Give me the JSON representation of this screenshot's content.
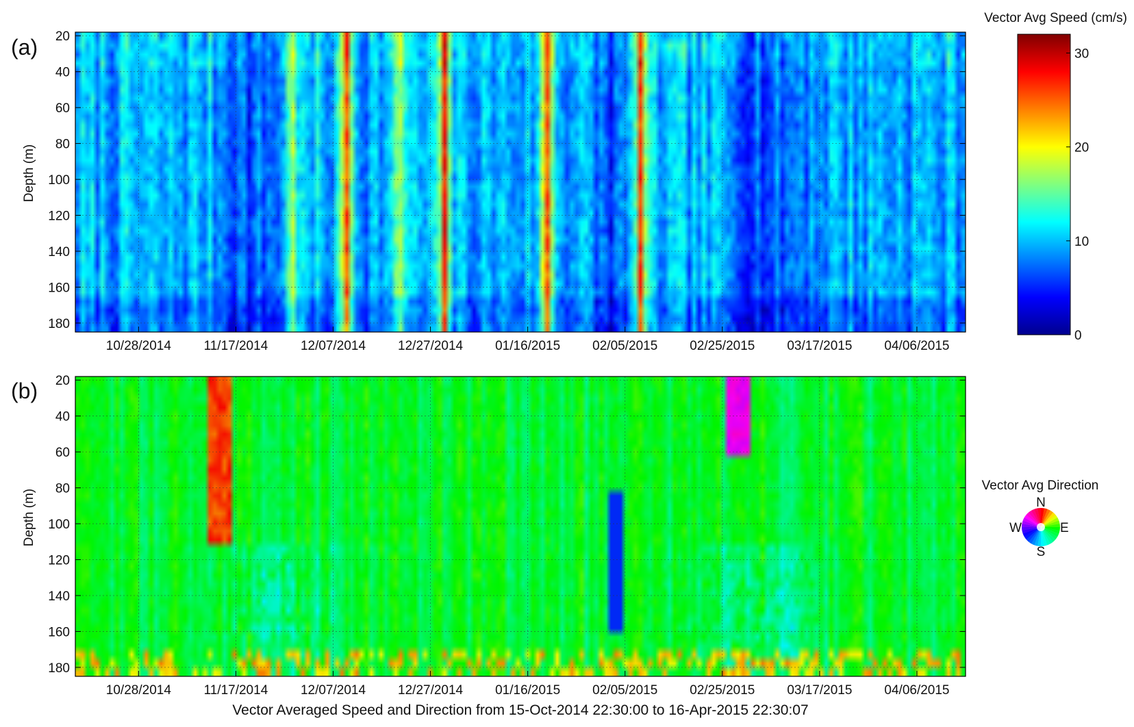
{
  "figure": {
    "footer": "Vector Averaged Speed and Direction from 15-Oct-2014 22:30:00 to 16-Apr-2015 22:30:07"
  },
  "chart_data": [
    {
      "type": "heatmap",
      "panel_label": "(a)",
      "title": "",
      "xlabel": "",
      "ylabel": "Depth (m)",
      "x_tick_labels": [
        "10/28/2014",
        "11/17/2014",
        "12/07/2014",
        "12/27/2014",
        "01/16/2015",
        "02/05/2015",
        "02/25/2015",
        "03/17/2015",
        "04/06/2015"
      ],
      "xlim": [
        "2014-10-15",
        "2015-04-16"
      ],
      "y_ticks": [
        20,
        40,
        60,
        80,
        100,
        120,
        140,
        160,
        180
      ],
      "ylim": [
        18,
        185
      ],
      "y_reversed": true,
      "grid": true,
      "colorbar": {
        "title": "Vector Avg Speed (cm/s)",
        "ticks": [
          0,
          10,
          20,
          30
        ],
        "range": [
          0,
          32
        ],
        "colormap": "jet"
      },
      "value_summary": "speed mostly 4–12 cm/s; strong full-depth events ~27 cm/s near 12/09/2014, 12/29/2014, 01/19/2015, 02/07/2015"
    },
    {
      "type": "heatmap",
      "panel_label": "(b)",
      "title": "",
      "xlabel": "",
      "ylabel": "Depth (m)",
      "x_tick_labels": [
        "10/28/2014",
        "11/17/2014",
        "12/07/2014",
        "12/27/2014",
        "01/16/2015",
        "02/05/2015",
        "02/25/2015",
        "03/17/2015",
        "04/06/2015"
      ],
      "xlim": [
        "2014-10-15",
        "2015-04-16"
      ],
      "y_ticks": [
        20,
        40,
        60,
        80,
        100,
        120,
        140,
        160,
        180
      ],
      "ylim": [
        18,
        185
      ],
      "y_reversed": true,
      "grid": true,
      "direction_key": {
        "title": "Vector Avg Direction",
        "labels": {
          "n": "N",
          "e": "E",
          "s": "S",
          "w": "W"
        },
        "colors": {
          "n": "#ff0000",
          "e": "#00dd00",
          "s": "#00c8ff",
          "w": "#7a00ff"
        }
      },
      "value_summary": "direction mostly southeast to east (green); northward (red) near 11/13/2014 surface to 110 m; westward (purple) near 02/27/2015 upper layers"
    }
  ]
}
